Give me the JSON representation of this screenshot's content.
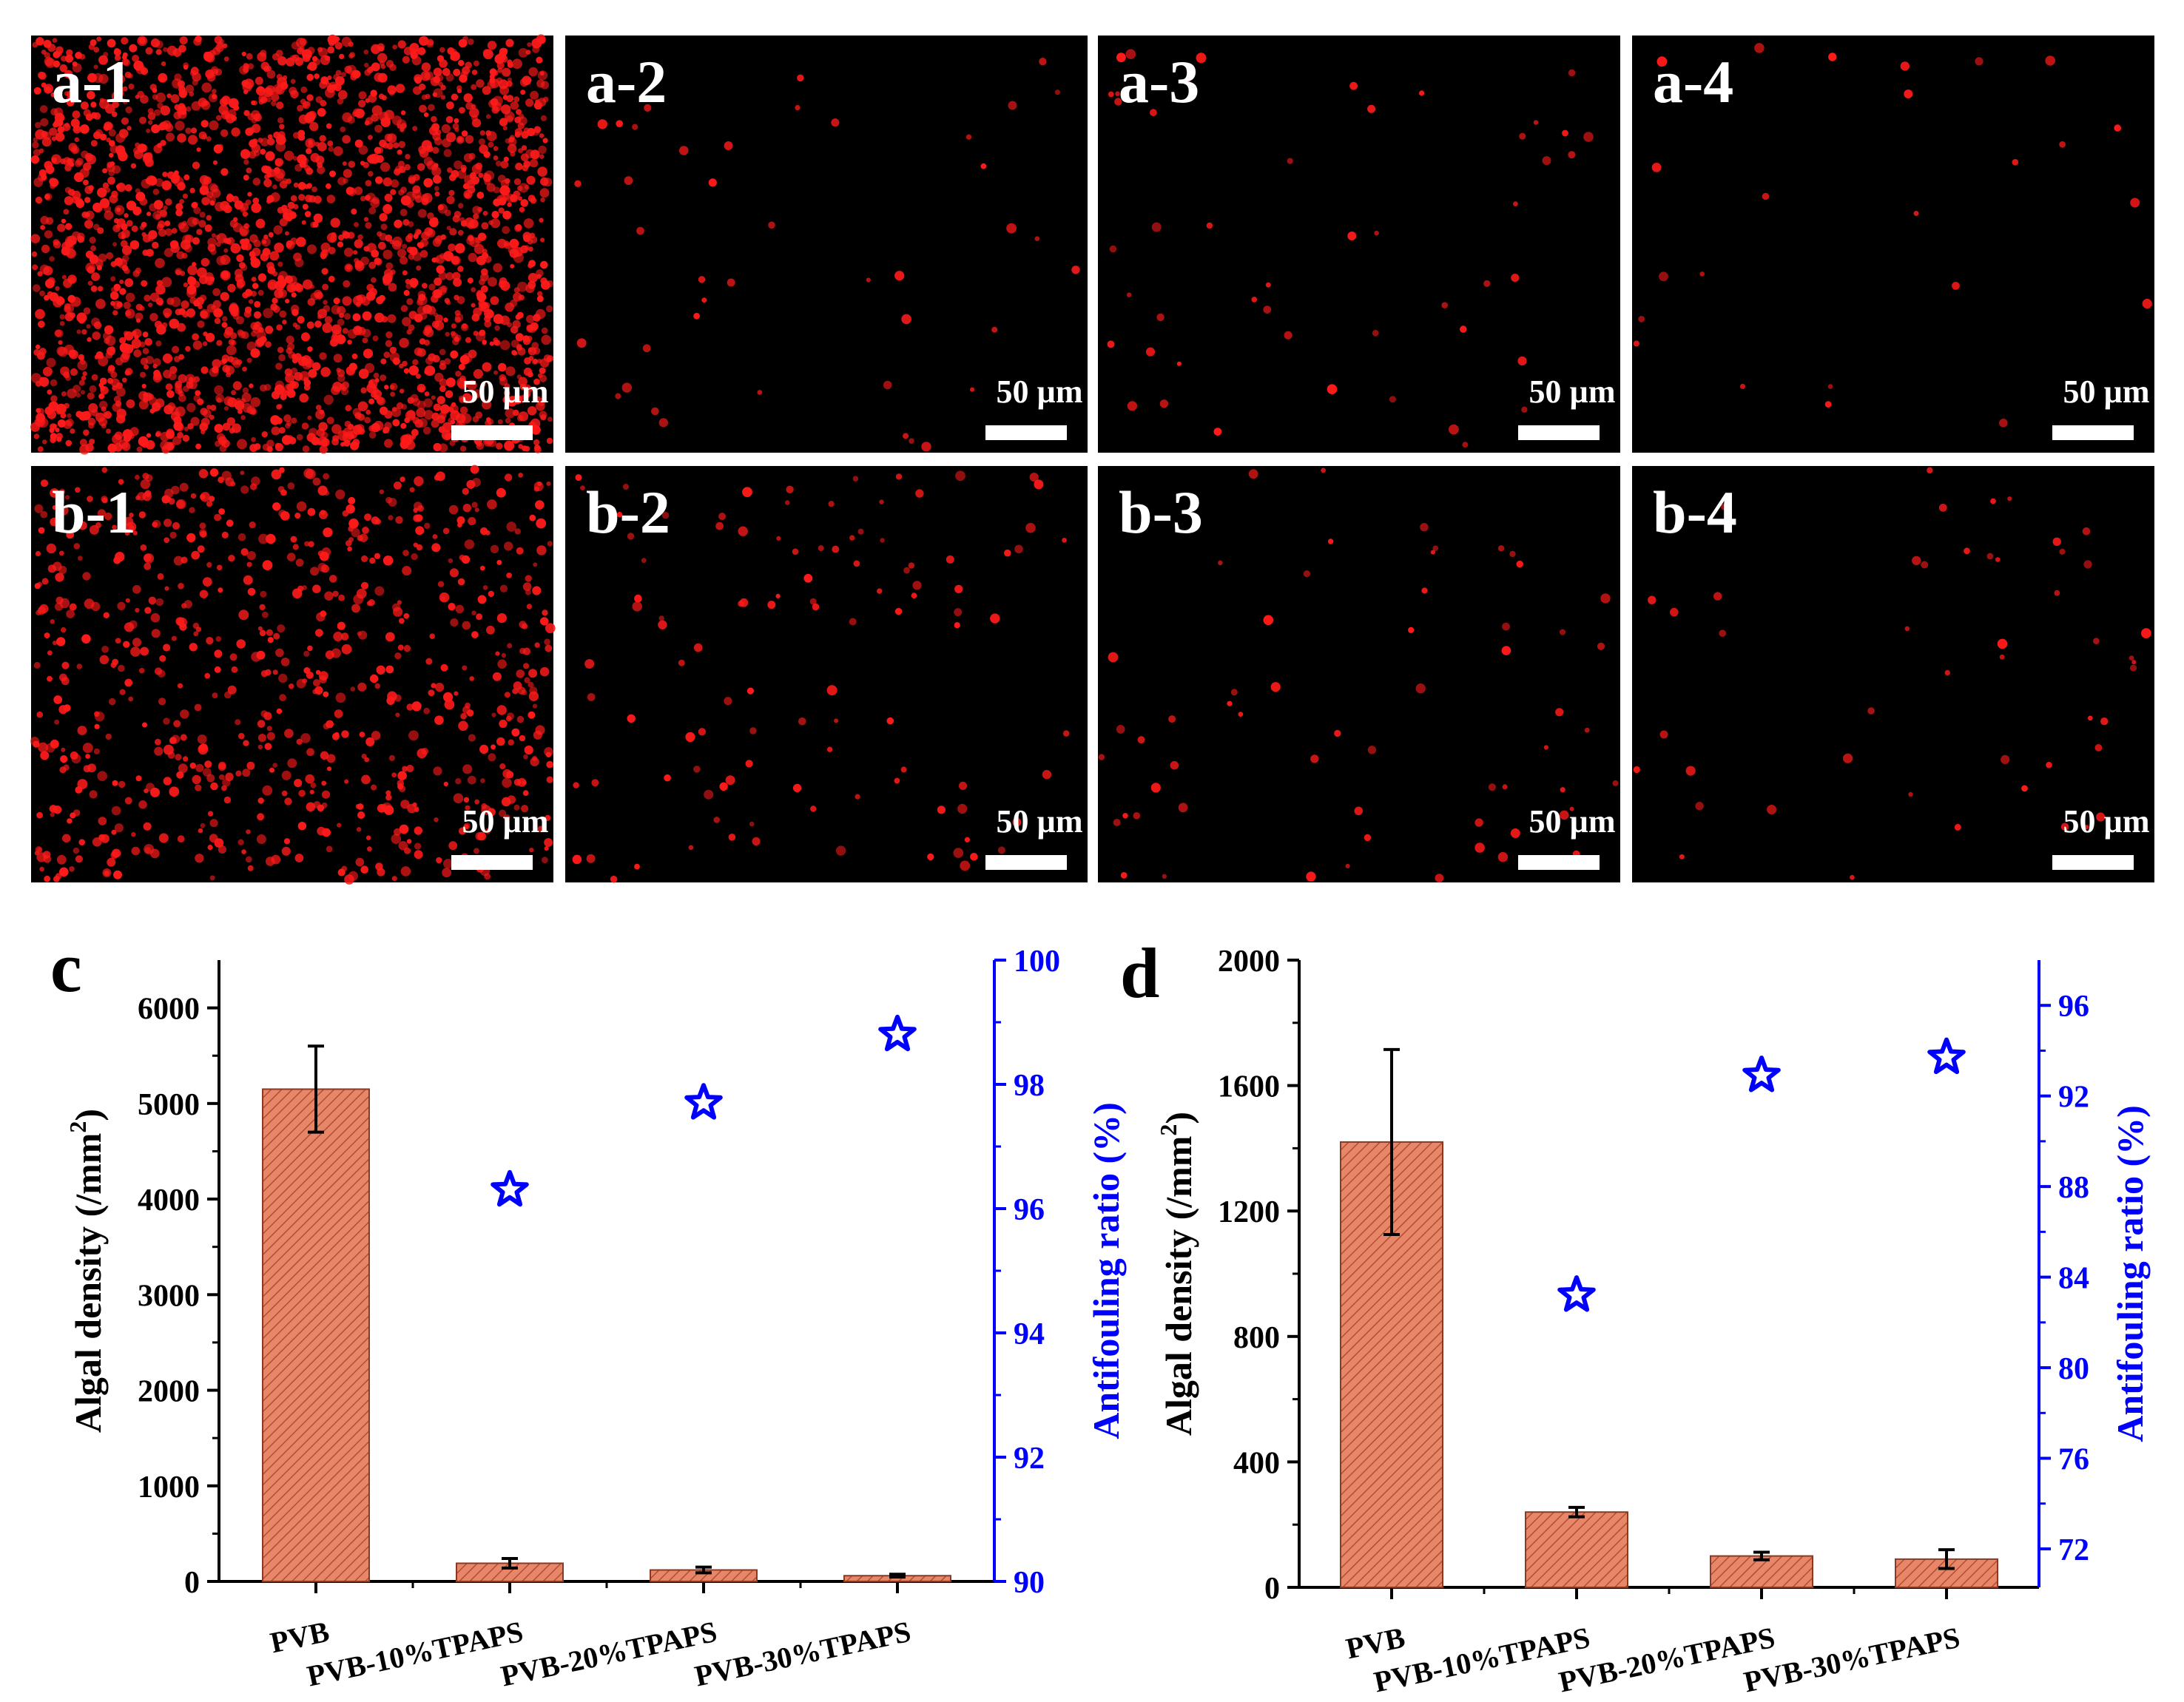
{
  "micrographs": {
    "scale_bar": "50 µm",
    "panels": [
      {
        "label": "a-1",
        "density": 1.0
      },
      {
        "label": "a-2",
        "density": 0.018
      },
      {
        "label": "a-3",
        "density": 0.02
      },
      {
        "label": "a-4",
        "density": 0.01
      },
      {
        "label": "b-1",
        "density": 0.33
      },
      {
        "label": "b-2",
        "density": 0.045
      },
      {
        "label": "b-3",
        "density": 0.025
      },
      {
        "label": "b-4",
        "density": 0.02
      }
    ]
  },
  "colors": {
    "bar_fill": "#e8866a",
    "bar_stroke": "#8a3a22",
    "star": "#0000ff",
    "axis": "#000000",
    "right_axis": "#0000ff",
    "cell": "#ff1a1a"
  },
  "chart_data": [
    {
      "panel_label": "c",
      "type": "bar",
      "categories": [
        "PVB",
        "PVB-10%TPAPS",
        "PVB-20%TPAPS",
        "PVB-30%TPAPS"
      ],
      "series": [
        {
          "name": "Algal density",
          "axis": "left",
          "type": "bar",
          "values": [
            5150,
            190,
            120,
            60
          ],
          "errors": [
            450,
            50,
            30,
            15
          ]
        },
        {
          "name": "Antifouling ratio",
          "axis": "right",
          "type": "scatter",
          "marker": "star",
          "values": [
            null,
            96.3,
            97.7,
            98.8
          ]
        }
      ],
      "ylabel": "Algal density (/mm2)",
      "y2label": "Antifouling ratio (%)",
      "ylim": [
        0,
        6500
      ],
      "yticks": [
        0,
        1000,
        2000,
        3000,
        4000,
        5000,
        6000
      ],
      "y2lim": [
        90,
        100
      ],
      "y2ticks": [
        90,
        92,
        94,
        96,
        98,
        100
      ]
    },
    {
      "panel_label": "d",
      "type": "bar",
      "categories": [
        "PVB",
        "PVB-10%TPAPS",
        "PVB-20%TPAPS",
        "PVB-30%TPAPS"
      ],
      "series": [
        {
          "name": "Algal density",
          "axis": "left",
          "type": "bar",
          "values": [
            1420,
            240,
            100,
            90
          ],
          "errors": [
            295,
            15,
            12,
            30
          ]
        },
        {
          "name": "Antifouling ratio",
          "axis": "right",
          "type": "scatter",
          "marker": "star",
          "values": [
            null,
            83.2,
            92.9,
            93.7
          ]
        }
      ],
      "ylabel": "Algal density (/mm2)",
      "y2label": "Antifouling ratio (%)",
      "ylim": [
        0,
        2000
      ],
      "yticks": [
        0,
        400,
        800,
        1200,
        1600,
        2000
      ],
      "y2lim": [
        70.3,
        98
      ],
      "y2ticks": [
        72,
        76,
        80,
        84,
        88,
        92,
        96
      ]
    }
  ]
}
